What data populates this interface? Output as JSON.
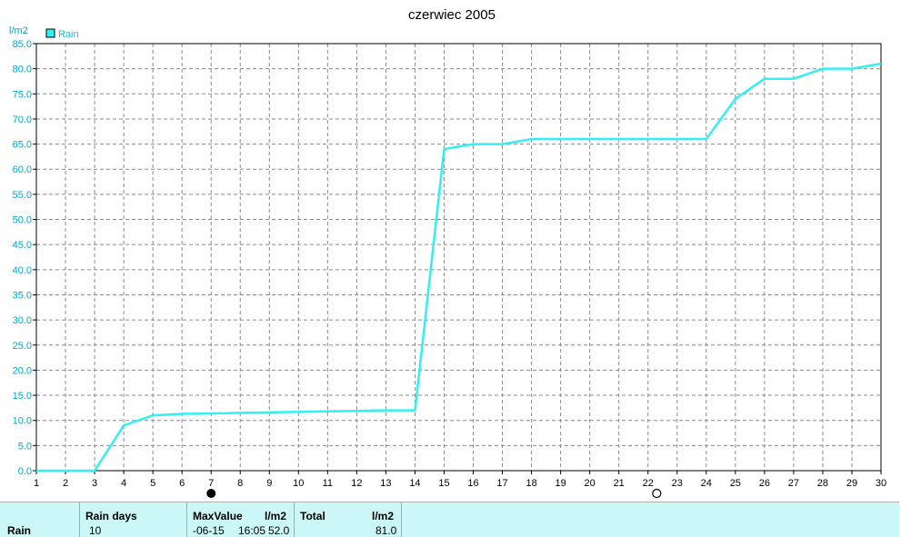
{
  "chart_data": {
    "type": "line",
    "title": "czerwiec 2005",
    "ylabel": "l/m2",
    "legend_position": "top-left",
    "grid": true,
    "xlim": [
      1,
      30
    ],
    "ylim": [
      0,
      85
    ],
    "x_ticks": [
      1,
      2,
      3,
      4,
      5,
      6,
      7,
      8,
      9,
      10,
      11,
      12,
      13,
      14,
      15,
      16,
      17,
      18,
      19,
      20,
      21,
      22,
      23,
      24,
      25,
      26,
      27,
      28,
      29,
      30
    ],
    "y_ticks": [
      "0.0",
      "5.0",
      "10.0",
      "15.0",
      "20.0",
      "25.0",
      "30.0",
      "35.0",
      "40.0",
      "45.0",
      "50.0",
      "55.0",
      "60.0",
      "65.0",
      "70.0",
      "75.0",
      "80.0",
      "85.0"
    ],
    "series": [
      {
        "name": "Rain",
        "color": "#33f0f0",
        "points": [
          [
            1,
            0
          ],
          [
            2,
            0
          ],
          [
            3,
            0
          ],
          [
            4,
            9.0
          ],
          [
            5,
            11.0
          ],
          [
            6,
            11.3
          ],
          [
            7,
            11.4
          ],
          [
            8,
            11.5
          ],
          [
            9,
            11.6
          ],
          [
            10,
            11.7
          ],
          [
            11,
            11.8
          ],
          [
            12,
            11.9
          ],
          [
            13,
            12.0
          ],
          [
            14,
            12.0
          ],
          [
            15,
            64.0
          ],
          [
            16,
            65.0
          ],
          [
            17,
            65.0
          ],
          [
            18,
            66.0
          ],
          [
            19,
            66.0
          ],
          [
            20,
            66.0
          ],
          [
            21,
            66.0
          ],
          [
            22,
            66.0
          ],
          [
            23,
            66.0
          ],
          [
            24,
            66.0
          ],
          [
            25,
            74.0
          ],
          [
            26,
            78.0
          ],
          [
            27,
            78.0
          ],
          [
            28,
            80.0
          ],
          [
            29,
            80.0
          ],
          [
            30,
            81.0
          ]
        ]
      }
    ],
    "markers": [
      {
        "x": 7,
        "type": "filled-circle",
        "name": "full-moon-marker"
      },
      {
        "x": 22.3,
        "type": "open-circle",
        "name": "new-moon-marker"
      }
    ]
  },
  "summary": {
    "row_label": "Rain",
    "rain_days_label": "Rain days",
    "rain_days_value": "10",
    "max_label": "MaxValue",
    "max_unit": "l/m2",
    "max_date": "-06-15",
    "max_time": "16:05",
    "max_value": "52.0",
    "total_label": "Total",
    "total_unit": "l/m2",
    "total_value": "81.0"
  }
}
